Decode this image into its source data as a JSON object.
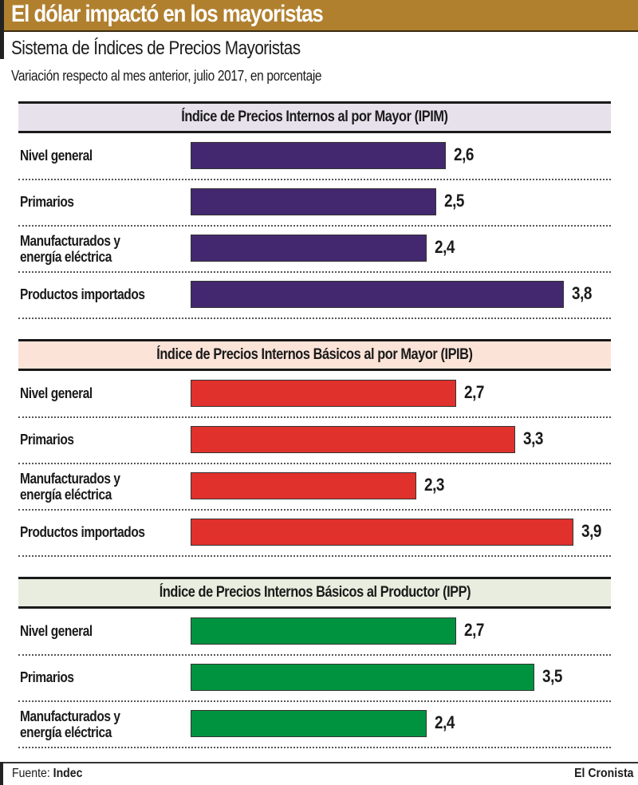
{
  "header": {
    "title": "El dólar impactó en los mayoristas",
    "subtitle": "Sistema de Índices de Precios Mayoristas",
    "lead": "Variación respecto al mes anterior, julio 2017, en porcentaje"
  },
  "colors": {
    "header_band": "#b0802f",
    "ipim_bar": "#43286f",
    "ipim_header_bg": "#e7e1ec",
    "ipib_bar": "#e0312c",
    "ipib_header_bg": "#fbe3d8",
    "ipp_bar": "#00933f",
    "ipp_header_bg": "#e8eddf"
  },
  "footer": {
    "source_label": "Fuente: ",
    "source_value": "Indec",
    "brand": "El Cronista"
  },
  "chart_data": {
    "type": "bar",
    "orientation": "horizontal",
    "title": "Sistema de Índices de Precios Mayoristas",
    "subtitle": "Variación respecto al mes anterior, julio 2017, en porcentaje",
    "unit": "%",
    "xlim": [
      0,
      4
    ],
    "grid": false,
    "groups": [
      {
        "name": "Índice de Precios Internos al por Mayor (IPIM)",
        "color": "#43286f",
        "categories": [
          "Nivel general",
          "Primarios",
          "Manufacturados y\nenergía eléctrica",
          "Productos importados"
        ],
        "values": [
          2.6,
          2.5,
          2.4,
          3.8
        ],
        "labels": [
          "2,6",
          "2,5",
          "2,4",
          "3,8"
        ]
      },
      {
        "name": "Índice de Precios Internos Básicos al por Mayor (IPIB)",
        "color": "#e0312c",
        "categories": [
          "Nivel general",
          "Primarios",
          "Manufacturados y\nenergía eléctrica",
          "Productos importados"
        ],
        "values": [
          2.7,
          3.3,
          2.3,
          3.9
        ],
        "labels": [
          "2,7",
          "3,3",
          "2,3",
          "3,9"
        ]
      },
      {
        "name": "Índice de Precios Internos Básicos al Productor (IPP)",
        "color": "#00933f",
        "categories": [
          "Nivel general",
          "Primarios",
          "Manufacturados y\nenergía eléctrica"
        ],
        "values": [
          2.7,
          3.5,
          2.4
        ],
        "labels": [
          "2,7",
          "3,5",
          "2,4"
        ]
      }
    ]
  }
}
